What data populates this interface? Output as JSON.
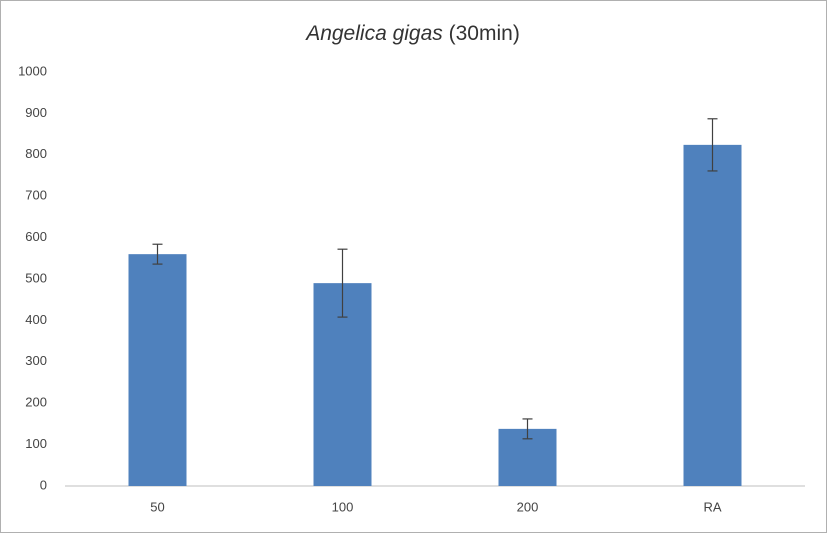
{
  "chart_data": {
    "type": "bar",
    "title": [
      "Angelica gigas",
      "(30min)"
    ],
    "categories": [
      "50",
      "100",
      "200",
      "RA"
    ],
    "values": [
      560,
      490,
      138,
      824
    ],
    "errors": [
      24,
      82,
      24,
      63
    ],
    "color": "#4f81bd",
    "ylim": [
      0,
      1000
    ],
    "yticks": [
      0,
      100,
      200,
      300,
      400,
      500,
      600,
      700,
      800,
      900,
      1000
    ],
    "grid": false
  }
}
